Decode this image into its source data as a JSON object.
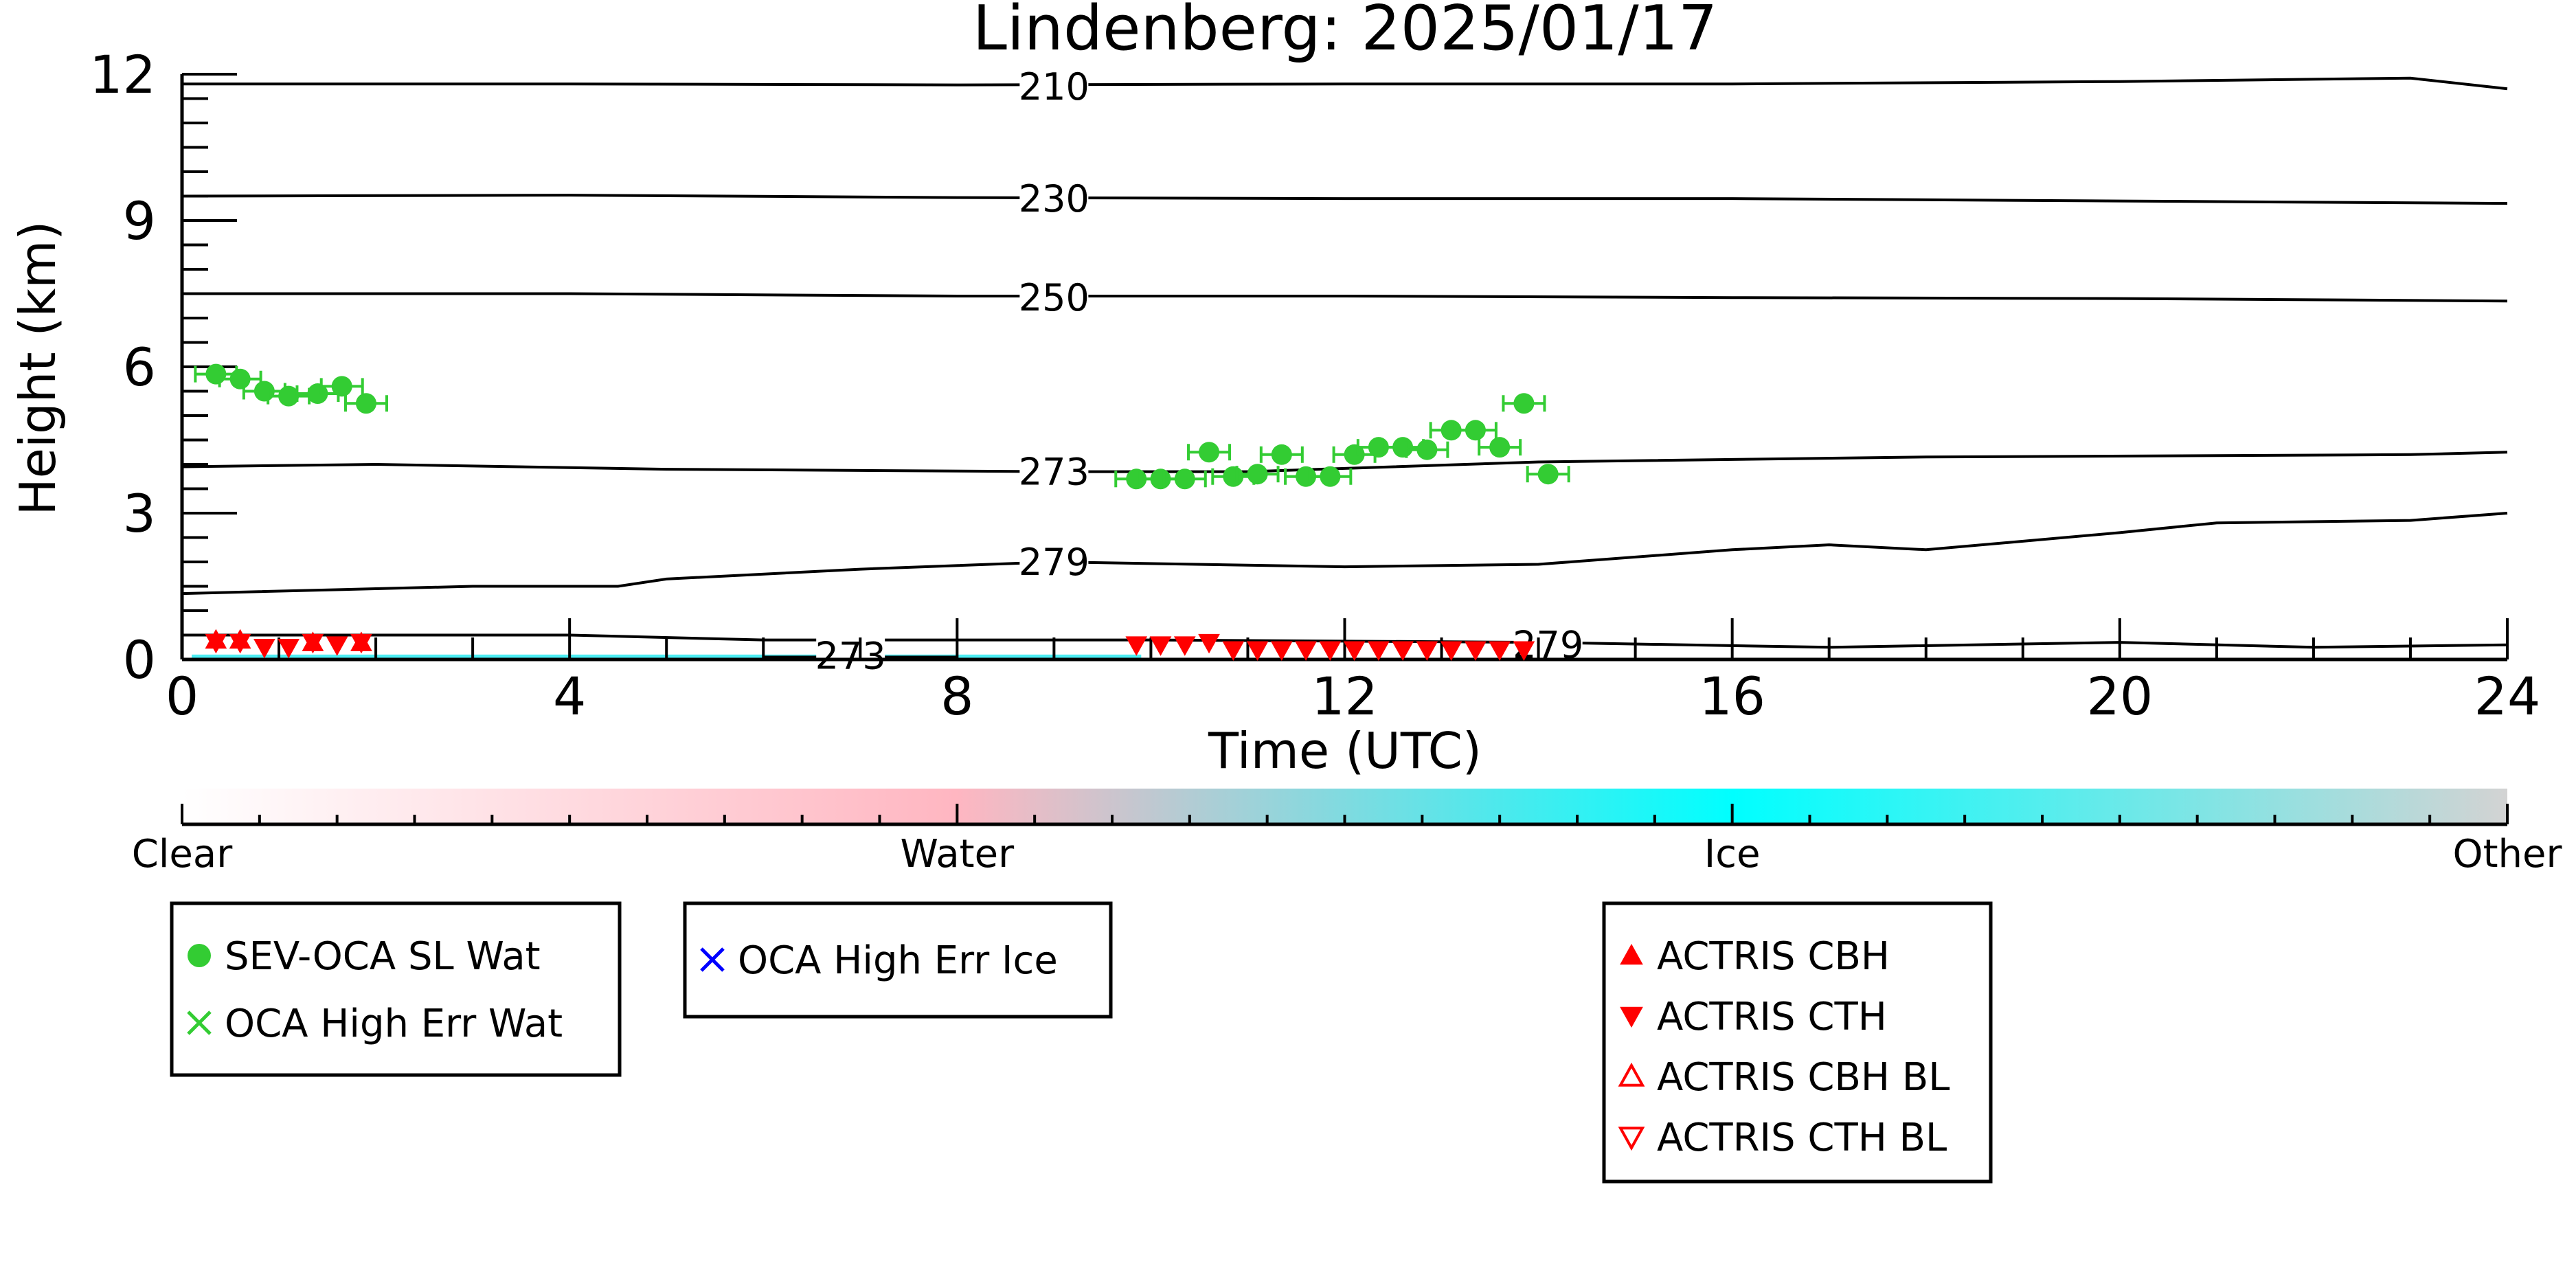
{
  "chart_data": {
    "type": "scatter",
    "title": "Lindenberg: 2025/01/17",
    "xlabel": "Time (UTC)",
    "ylabel": "Height (km)",
    "xlim": [
      0,
      24
    ],
    "ylim": [
      0,
      12
    ],
    "xticks": [
      0,
      4,
      8,
      12,
      16,
      20,
      24
    ],
    "yticks": [
      0,
      3,
      6,
      9,
      12
    ],
    "contour_colors": {
      "line": "#000000"
    },
    "temperature_contours": [
      {
        "label": "210",
        "label_at": [
          9.0,
          11.75
        ],
        "points": [
          [
            0,
            11.8
          ],
          [
            4,
            11.8
          ],
          [
            8,
            11.78
          ],
          [
            12,
            11.8
          ],
          [
            16,
            11.8
          ],
          [
            20,
            11.85
          ],
          [
            23,
            11.92
          ],
          [
            24,
            11.7
          ]
        ]
      },
      {
        "label": "230",
        "label_at": [
          9.0,
          9.45
        ],
        "points": [
          [
            0,
            9.5
          ],
          [
            4,
            9.52
          ],
          [
            8,
            9.47
          ],
          [
            12,
            9.45
          ],
          [
            16,
            9.45
          ],
          [
            20,
            9.4
          ],
          [
            24,
            9.35
          ]
        ]
      },
      {
        "label": "250",
        "label_at": [
          9.0,
          7.42
        ],
        "points": [
          [
            0,
            7.5
          ],
          [
            4,
            7.5
          ],
          [
            8,
            7.45
          ],
          [
            12,
            7.45
          ],
          [
            16,
            7.42
          ],
          [
            20,
            7.4
          ],
          [
            24,
            7.35
          ]
        ]
      },
      {
        "label": "273",
        "label_at": [
          9.0,
          3.85
        ],
        "points": [
          [
            0,
            3.95
          ],
          [
            2,
            4.0
          ],
          [
            5,
            3.9
          ],
          [
            9,
            3.85
          ],
          [
            11,
            3.85
          ],
          [
            14,
            4.05
          ],
          [
            18,
            4.15
          ],
          [
            23,
            4.2
          ],
          [
            24,
            4.25
          ]
        ]
      },
      {
        "label": "279",
        "label_at": [
          9.0,
          2.0
        ],
        "points": [
          [
            0,
            1.35
          ],
          [
            2,
            1.45
          ],
          [
            3,
            1.5
          ],
          [
            4.5,
            1.5
          ],
          [
            5,
            1.65
          ],
          [
            7,
            1.85
          ],
          [
            9,
            2.0
          ],
          [
            12,
            1.9
          ],
          [
            14,
            1.95
          ],
          [
            16,
            2.25
          ],
          [
            17,
            2.35
          ],
          [
            18,
            2.25
          ],
          [
            20,
            2.6
          ],
          [
            21,
            2.8
          ],
          [
            23,
            2.85
          ],
          [
            24,
            3.0
          ]
        ]
      },
      {
        "label": "279",
        "label_at": [
          14.1,
          0.3
        ],
        "points": [
          [
            0,
            0.5
          ],
          [
            4,
            0.5
          ],
          [
            6,
            0.4
          ],
          [
            10,
            0.4
          ],
          [
            14,
            0.35
          ],
          [
            17,
            0.25
          ],
          [
            20,
            0.35
          ],
          [
            22,
            0.25
          ],
          [
            24,
            0.3
          ]
        ]
      },
      {
        "label": "273",
        "label_at": [
          6.9,
          0.08
        ],
        "points": [
          [
            6.0,
            0.05
          ],
          [
            8.0,
            0.05
          ]
        ]
      }
    ],
    "series": [
      {
        "name": "SEV-OCA SL Wat",
        "marker": "circle",
        "color": "#33cc33",
        "x": [
          0.35,
          0.6,
          0.85,
          1.1,
          1.4,
          1.65,
          1.9,
          9.85,
          10.1,
          10.35,
          10.6,
          10.85,
          11.1,
          11.35,
          11.6,
          11.85,
          12.1,
          12.35,
          12.6,
          12.85,
          13.1,
          13.35,
          13.6,
          13.85,
          14.1
        ],
        "y": [
          5.85,
          5.75,
          5.5,
          5.4,
          5.45,
          5.6,
          5.25,
          3.7,
          3.7,
          3.7,
          4.25,
          3.75,
          3.8,
          4.2,
          3.75,
          3.75,
          4.2,
          4.35,
          4.35,
          4.3,
          4.7,
          4.7,
          4.35,
          5.25,
          3.8
        ]
      },
      {
        "name": "ACTRIS CTH",
        "marker": "triangle-down",
        "color": "#ff0000",
        "x": [
          0.35,
          0.6,
          0.85,
          1.1,
          1.35,
          1.6,
          1.85,
          9.85,
          10.1,
          10.35,
          10.6,
          10.85,
          11.1,
          11.35,
          11.6,
          11.85,
          12.1,
          12.35,
          12.6,
          12.85,
          13.1,
          13.35,
          13.6,
          13.85
        ],
        "y": [
          0.15,
          0.15,
          0.05,
          0.05,
          0.15,
          0.1,
          0.15,
          0.1,
          0.1,
          0.1,
          0.15,
          0.0,
          0.0,
          0.0,
          0.0,
          0.0,
          0.0,
          0.0,
          0.0,
          0.0,
          0.0,
          0.0,
          0.0,
          0.0
        ]
      },
      {
        "name": "ACTRIS CBH",
        "marker": "triangle-up",
        "color": "#ff0000",
        "x": [
          0.35,
          0.6,
          1.35,
          1.85
        ],
        "y": [
          0.2,
          0.2,
          0.15,
          0.15
        ]
      }
    ],
    "ice_band": {
      "color": "#00e5ee",
      "x_ranges": [
        [
          0.1,
          9.9
        ]
      ],
      "y_range": [
        0,
        0.1
      ]
    },
    "colorbar": {
      "labels": [
        "Clear",
        "Water",
        "Ice",
        "Other"
      ],
      "colors": [
        "#ffffff",
        "#ffb6c1",
        "#00ffff",
        "#d3d3d3"
      ]
    },
    "legends": [
      {
        "entries": [
          {
            "label": "SEV-OCA SL Wat",
            "marker": "circle",
            "color": "#33cc33"
          },
          {
            "label": "OCA High Err Wat",
            "marker": "x",
            "color": "#33cc33"
          }
        ]
      },
      {
        "entries": [
          {
            "label": "OCA High Err Ice",
            "marker": "x",
            "color": "#0000ff"
          }
        ]
      },
      {
        "entries": [
          {
            "label": "ACTRIS CBH",
            "marker": "triangle-up",
            "color": "#ff0000"
          },
          {
            "label": "ACTRIS CTH",
            "marker": "triangle-down",
            "color": "#ff0000"
          },
          {
            "label": "ACTRIS CBH BL",
            "marker": "triangle-up-open",
            "color": "#ff0000"
          },
          {
            "label": "ACTRIS CTH BL",
            "marker": "triangle-down-open",
            "color": "#ff0000"
          }
        ]
      }
    ]
  }
}
